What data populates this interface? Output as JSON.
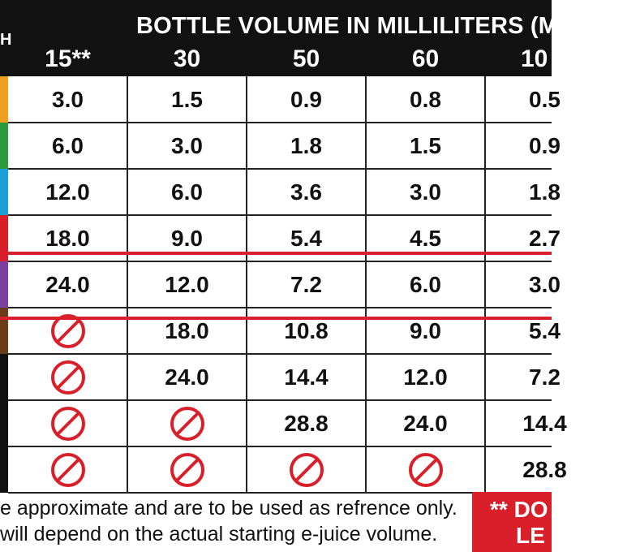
{
  "header": {
    "stub_label": "H",
    "title": "BOTTLE VOLUME IN MILLILITERS (M",
    "columns": [
      "15**",
      "30",
      "50",
      "60",
      "10"
    ]
  },
  "colors": {
    "row_swatches": [
      "#f0a020",
      "#2c9a3c",
      "#1aa0d8",
      "#d9202a",
      "#7a3fa0",
      "#6b3c18",
      "#111111",
      "#111111",
      "#111111"
    ],
    "accent_red": "#d9202a",
    "header_bg": "#111111"
  },
  "rows": [
    [
      "3.0",
      "1.5",
      "0.9",
      "0.8",
      "0.5"
    ],
    [
      "6.0",
      "3.0",
      "1.8",
      "1.5",
      "0.9"
    ],
    [
      "12.0",
      "6.0",
      "3.6",
      "3.0",
      "1.8"
    ],
    [
      "18.0",
      "9.0",
      "5.4",
      "4.5",
      "2.7"
    ],
    [
      "24.0",
      "12.0",
      "7.2",
      "6.0",
      "3.0"
    ],
    [
      "no-icon",
      "18.0",
      "10.8",
      "9.0",
      "5.4"
    ],
    [
      "no-icon",
      "24.0",
      "14.4",
      "12.0",
      "7.2"
    ],
    [
      "no-icon",
      "no-icon",
      "28.8",
      "24.0",
      "14.4"
    ],
    [
      "no-icon",
      "no-icon",
      "no-icon",
      "no-icon",
      "28.8"
    ]
  ],
  "footer": {
    "line1": "e approximate and are to be used as refrence only.",
    "line2": " will depend on the actual starting e-juice volume.",
    "warning_line1": "** DO",
    "warning_line2": "LE"
  }
}
